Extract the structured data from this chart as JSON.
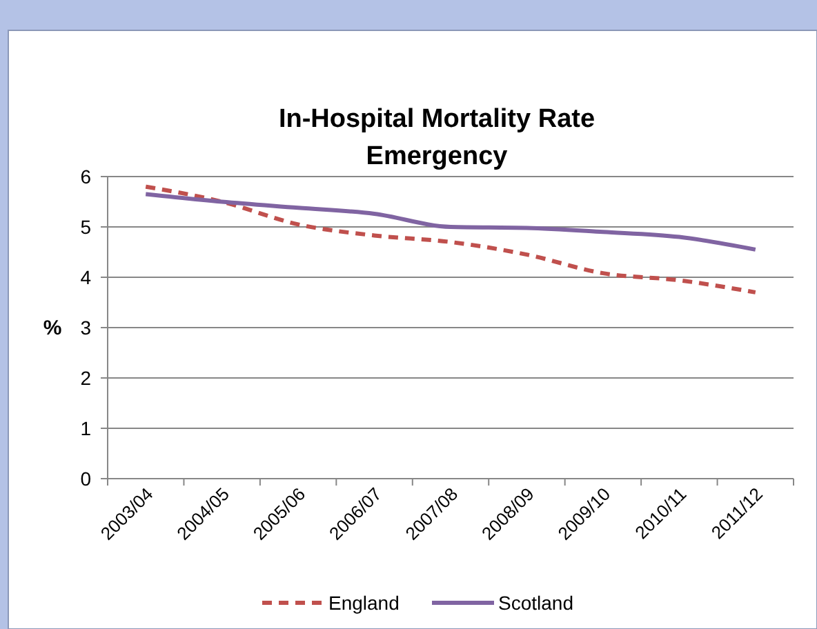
{
  "chart_data": {
    "type": "line",
    "title": "In-Hospital Mortality Rate\nEmergency",
    "ylabel": "%",
    "categories": [
      "2003/04",
      "2004/05",
      "2005/06",
      "2006/07",
      "2007/08",
      "2008/09",
      "2009/10",
      "2010/11",
      "2011/12"
    ],
    "series": [
      {
        "name": "England",
        "color": "#c0504d",
        "line_style": "dashed",
        "values": [
          5.8,
          5.5,
          5.05,
          4.83,
          4.7,
          4.45,
          4.08,
          3.94,
          3.7
        ]
      },
      {
        "name": "Scotland",
        "color": "#8064a2",
        "line_style": "solid",
        "values": [
          5.65,
          5.5,
          5.38,
          5.26,
          5.0,
          4.98,
          4.9,
          4.8,
          4.55
        ]
      }
    ],
    "ylim": [
      0,
      6
    ],
    "yticks": [
      0,
      1,
      2,
      3,
      4,
      5,
      6
    ],
    "grid": "y",
    "legend": "bottom",
    "marker": "none"
  }
}
